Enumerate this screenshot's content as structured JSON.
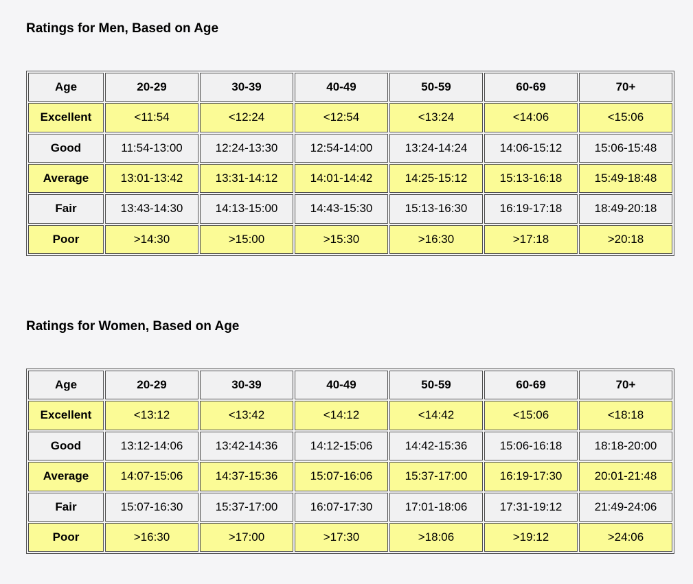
{
  "colors": {
    "page_background": "#f5f5f7",
    "cell_background": "#f1f1f2",
    "highlight_yellow": "#fbfb96",
    "table_border": "#4f4f4f",
    "text": "#000000"
  },
  "tables": [
    {
      "title": "Ratings for Men, Based on Age",
      "columns": [
        "Age",
        "20-29",
        "30-39",
        "40-49",
        "50-59",
        "60-69",
        "70+"
      ],
      "rows": [
        {
          "label": "Excellent",
          "values": [
            "<11:54",
            "<12:24",
            "<12:54",
            "<13:24",
            "<14:06",
            "<15:06"
          ]
        },
        {
          "label": "Good",
          "values": [
            "11:54-13:00",
            "12:24-13:30",
            "12:54-14:00",
            "13:24-14:24",
            "14:06-15:12",
            "15:06-15:48"
          ]
        },
        {
          "label": "Average",
          "values": [
            "13:01-13:42",
            "13:31-14:12",
            "14:01-14:42",
            "14:25-15:12",
            "15:13-16:18",
            "15:49-18:48"
          ]
        },
        {
          "label": "Fair",
          "values": [
            "13:43-14:30",
            "14:13-15:00",
            "14:43-15:30",
            "15:13-16:30",
            "16:19-17:18",
            "18:49-20:18"
          ]
        },
        {
          "label": "Poor",
          "values": [
            ">14:30",
            ">15:00",
            ">15:30",
            ">16:30",
            ">17:18",
            ">20:18"
          ]
        }
      ]
    },
    {
      "title": "Ratings for Women, Based on Age",
      "columns": [
        "Age",
        "20-29",
        "30-39",
        "40-49",
        "50-59",
        "60-69",
        "70+"
      ],
      "rows": [
        {
          "label": "Excellent",
          "values": [
            "<13:12",
            "<13:42",
            "<14:12",
            "<14:42",
            "<15:06",
            "<18:18"
          ]
        },
        {
          "label": "Good",
          "values": [
            "13:12-14:06",
            "13:42-14:36",
            "14:12-15:06",
            "14:42-15:36",
            "15:06-16:18",
            "18:18-20:00"
          ]
        },
        {
          "label": "Average",
          "values": [
            "14:07-15:06",
            "14:37-15:36",
            "15:07-16:06",
            "15:37-17:00",
            "16:19-17:30",
            "20:01-21:48"
          ]
        },
        {
          "label": "Fair",
          "values": [
            "15:07-16:30",
            "15:37-17:00",
            "16:07-17:30",
            "17:01-18:06",
            "17:31-19:12",
            "21:49-24:06"
          ]
        },
        {
          "label": "Poor",
          "values": [
            ">16:30",
            ">17:00",
            ">17:30",
            ">18:06",
            ">19:12",
            ">24:06"
          ]
        }
      ]
    }
  ]
}
